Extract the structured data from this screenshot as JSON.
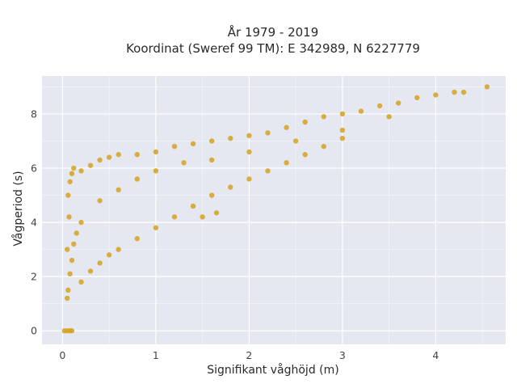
{
  "chart_data": {
    "type": "scatter",
    "title": "År 1979 - 2019",
    "subtitle": "Koordinat (Sweref 99 TM): E 342989, N 6227779",
    "xlabel": "Signifikant våghöjd (m)",
    "ylabel": "Vågperiod (s)",
    "xlim": [
      -0.22,
      4.75
    ],
    "ylim": [
      -0.5,
      9.4
    ],
    "x_ticks": [
      0,
      1,
      2,
      3,
      4
    ],
    "y_ticks": [
      0,
      2,
      4,
      6,
      8
    ],
    "x_tick_labels": [
      "0",
      "1",
      "2",
      "3",
      "4"
    ],
    "y_tick_labels": [
      "0",
      "2",
      "4",
      "6",
      "8"
    ],
    "grid": true,
    "legend": "none",
    "marker_color": "#D4A21E",
    "plot_bg": "#E5E8F1",
    "series": [
      {
        "points": [
          [
            0.05,
            1.2
          ],
          [
            0.06,
            1.5
          ],
          [
            0.08,
            2.1
          ],
          [
            0.1,
            2.6
          ],
          [
            0.12,
            3.2
          ],
          [
            0.15,
            3.6
          ],
          [
            0.05,
            3.0
          ],
          [
            0.07,
            4.2
          ],
          [
            0.06,
            5.0
          ],
          [
            0.08,
            5.5
          ],
          [
            0.1,
            5.8
          ],
          [
            0.12,
            6.0
          ],
          [
            0.2,
            5.9
          ],
          [
            0.3,
            6.1
          ],
          [
            0.4,
            6.3
          ],
          [
            0.5,
            6.4
          ],
          [
            0.6,
            6.5
          ],
          [
            0.8,
            6.5
          ],
          [
            1.0,
            6.6
          ],
          [
            1.2,
            6.8
          ],
          [
            1.4,
            6.9
          ],
          [
            1.6,
            7.0
          ],
          [
            1.8,
            7.1
          ],
          [
            2.0,
            7.2
          ],
          [
            2.2,
            7.3
          ],
          [
            2.4,
            7.5
          ],
          [
            2.6,
            7.7
          ],
          [
            2.8,
            7.9
          ],
          [
            3.0,
            8.0
          ],
          [
            3.2,
            8.1
          ],
          [
            3.4,
            8.3
          ],
          [
            3.6,
            8.4
          ],
          [
            3.8,
            8.6
          ],
          [
            4.0,
            8.7
          ],
          [
            4.2,
            8.8
          ],
          [
            4.3,
            8.8
          ],
          [
            4.55,
            9.0
          ],
          [
            0.2,
            1.8
          ],
          [
            0.3,
            2.2
          ],
          [
            0.4,
            2.5
          ],
          [
            0.5,
            2.8
          ],
          [
            0.6,
            3.0
          ],
          [
            0.8,
            3.4
          ],
          [
            1.0,
            3.8
          ],
          [
            1.2,
            4.2
          ],
          [
            1.4,
            4.6
          ],
          [
            1.6,
            5.0
          ],
          [
            1.8,
            5.3
          ],
          [
            2.0,
            5.6
          ],
          [
            2.2,
            5.9
          ],
          [
            2.4,
            6.2
          ],
          [
            2.6,
            6.5
          ],
          [
            2.8,
            6.8
          ],
          [
            3.0,
            7.1
          ],
          [
            0.2,
            4.0
          ],
          [
            0.4,
            4.8
          ],
          [
            0.6,
            5.2
          ],
          [
            0.8,
            5.6
          ],
          [
            1.0,
            5.9
          ],
          [
            1.3,
            6.2
          ],
          [
            1.6,
            6.3
          ],
          [
            2.0,
            6.6
          ],
          [
            2.5,
            7.0
          ],
          [
            3.0,
            7.4
          ],
          [
            3.5,
            7.9
          ],
          [
            1.5,
            4.2
          ],
          [
            1.65,
            4.35
          ],
          [
            0.02,
            0.0
          ],
          [
            0.05,
            0.0
          ],
          [
            0.08,
            0.0
          ],
          [
            0.1,
            0.0
          ]
        ]
      }
    ]
  }
}
